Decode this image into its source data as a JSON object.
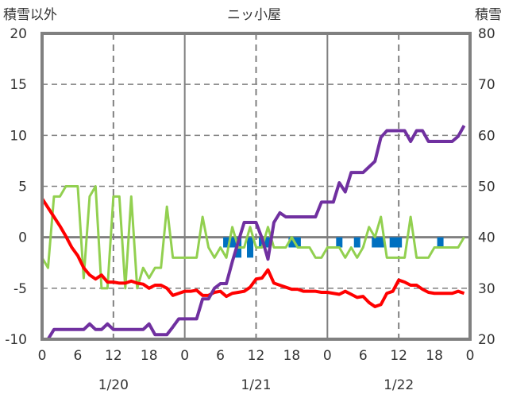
{
  "chart_data": {
    "type": "line",
    "title": "ニッ小屋",
    "ylabel_left": "積雪以外",
    "ylabel_right": "積雪",
    "ylim_left": [
      -10,
      20
    ],
    "ylim_right": [
      20,
      80
    ],
    "yticks_left": [
      "20",
      "15",
      "10",
      "5",
      "0",
      "-5",
      "-10"
    ],
    "yticks_right": [
      "80",
      "70",
      "60",
      "50",
      "40",
      "30",
      "20"
    ],
    "xlim_hours": [
      0,
      72
    ],
    "xtick_labels": [
      "0",
      "6",
      "12",
      "18",
      "0",
      "6",
      "12",
      "18",
      "0",
      "6",
      "12",
      "18",
      "0"
    ],
    "date_labels": [
      "1/20",
      "1/21",
      "1/22"
    ],
    "grid": true,
    "series": [
      {
        "name": "green",
        "axis": "left",
        "color": "#92d050",
        "values": [
          -2,
          -3,
          4,
          4,
          5,
          5,
          5,
          -4,
          4,
          5,
          -5,
          -5,
          4,
          4,
          -5,
          4,
          -5,
          -3,
          -4,
          -3,
          -3,
          3,
          -2,
          -2,
          -2,
          -2,
          -2,
          2,
          -1,
          -2,
          -1,
          -2,
          1,
          -1,
          -1,
          1,
          -1,
          -1,
          1,
          -1,
          -1,
          -1,
          0,
          -1,
          -1,
          -1,
          -2,
          -2,
          -1,
          -1,
          -1,
          -2,
          -1,
          -2,
          -1,
          1,
          0,
          2,
          -2,
          -2,
          -2,
          -2,
          2,
          -2,
          -2,
          -2,
          -1,
          -1,
          -1,
          -1,
          -1,
          0
        ]
      },
      {
        "name": "red",
        "axis": "left",
        "color": "#ff0000",
        "values": [
          3.8,
          2.9,
          2,
          1.1,
          0.1,
          -1,
          -1.8,
          -3,
          -3.7,
          -4.1,
          -3.7,
          -4.4,
          -4.4,
          -4.5,
          -4.5,
          -4.3,
          -4.5,
          -4.6,
          -5,
          -4.7,
          -4.7,
          -5,
          -5.7,
          -5.5,
          -5.3,
          -5.3,
          -5.2,
          -5.7,
          -5.7,
          -5.4,
          -5.3,
          -5.8,
          -5.5,
          -5.4,
          -5.3,
          -4.9,
          -4.1,
          -4,
          -3.2,
          -4.5,
          -4.7,
          -4.9,
          -5.1,
          -5.1,
          -5.3,
          -5.3,
          -5.3,
          -5.4,
          -5.4,
          -5.5,
          -5.6,
          -5.3,
          -5.6,
          -5.9,
          -5.8,
          -6.4,
          -6.8,
          -6.6,
          -5.5,
          -5.3,
          -4.2,
          -4.4,
          -4.7,
          -4.7,
          -5.1,
          -5.4,
          -5.5,
          -5.5,
          -5.5,
          -5.5,
          -5.3,
          -5.5
        ]
      },
      {
        "name": "purple",
        "axis": "right",
        "color": "#7030a0",
        "values": [
          20,
          20,
          21.9,
          21.9,
          21.9,
          21.9,
          21.9,
          21.9,
          23,
          21.9,
          21.9,
          23,
          21.9,
          21.9,
          21.9,
          21.9,
          21.9,
          21.9,
          23,
          20.9,
          20.9,
          20.9,
          22.4,
          24,
          24,
          24,
          24,
          27.9,
          27.9,
          30,
          30.9,
          30.9,
          35.2,
          39.1,
          42.9,
          42.9,
          42.9,
          39.8,
          35.7,
          42.9,
          44.8,
          44,
          44,
          44,
          44,
          44,
          44,
          46.9,
          46.9,
          46.9,
          50.7,
          48.9,
          52.7,
          52.7,
          52.7,
          53.8,
          54.9,
          59.6,
          60.9,
          60.9,
          60.9,
          60.9,
          58.8,
          60.9,
          60.9,
          58.8,
          58.8,
          58.8,
          58.8,
          58.8,
          59.8,
          61.9
        ]
      }
    ],
    "bars": {
      "name": "blue",
      "axis": "left",
      "color": "#0070c0",
      "hours": [
        31,
        32,
        33,
        35,
        37,
        38,
        42,
        43,
        50,
        53,
        56,
        57,
        59,
        60,
        67
      ],
      "values": [
        -1,
        -1,
        -2,
        -2,
        -1,
        -1,
        -1,
        -1,
        -1,
        -1,
        -1,
        -1,
        -1,
        -1,
        -1
      ]
    }
  }
}
